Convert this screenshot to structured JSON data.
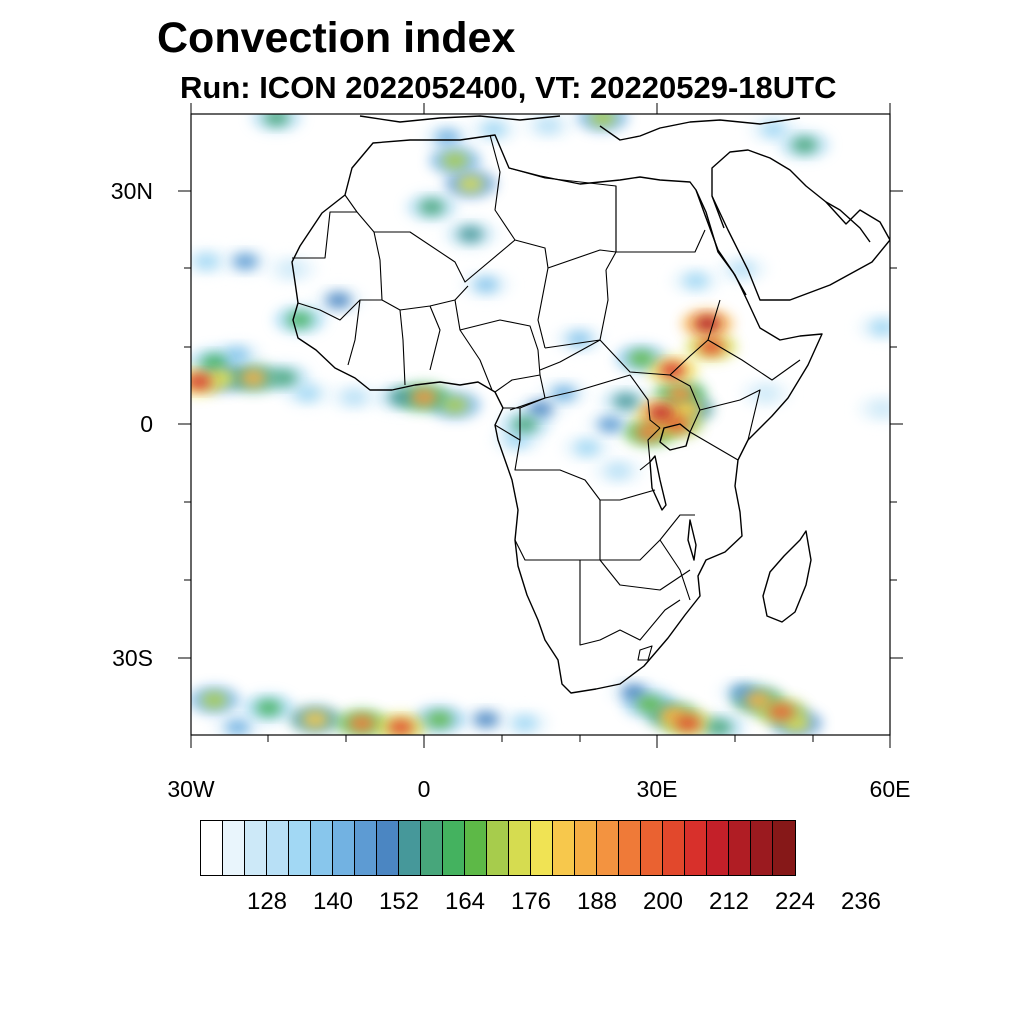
{
  "title": "Convection index",
  "subtitle": "Run: ICON 2022052400,  VT: 20220529-18UTC",
  "axes": {
    "lat_labels": [
      "30N",
      "0",
      "30S"
    ],
    "lon_labels": [
      "30W",
      "0",
      "30E",
      "60E"
    ]
  },
  "colorbar": {
    "colors": [
      "#ffffff",
      "#e9f5fc",
      "#cde9f8",
      "#b8e0f6",
      "#a2d8f4",
      "#88c6ec",
      "#72b2e2",
      "#5d9bd3",
      "#4b86c2",
      "#46989a",
      "#47a67b",
      "#44b25f",
      "#5db947",
      "#a7cc4c",
      "#d6dc50",
      "#f0e354",
      "#f7c84c",
      "#f5ae44",
      "#f39340",
      "#ef7a38",
      "#ea6231",
      "#e2482c",
      "#d8302b",
      "#c42029",
      "#b01d24",
      "#9b1a1f",
      "#861818"
    ],
    "tick_labels": [
      "128",
      "140",
      "152",
      "164",
      "176",
      "188",
      "200",
      "212",
      "224",
      "236"
    ]
  },
  "chart_data": {
    "type": "filled-contour-map",
    "title": "Convection index",
    "subtitle": "Run: ICON 2022052400,  VT: 20220529-18UTC",
    "variable": "Convection index",
    "model": "ICON",
    "run": "2022052400",
    "valid_time": "20220529-18UTC",
    "lon_range": [
      -30,
      60
    ],
    "lat_range": [
      -40,
      40
    ],
    "levels": [
      128,
      132,
      136,
      140,
      144,
      148,
      152,
      156,
      160,
      164,
      168,
      172,
      176,
      180,
      184,
      188,
      192,
      196,
      200,
      204,
      208,
      212,
      216,
      220,
      224,
      228,
      232,
      236
    ],
    "cells": [
      {
        "lon": -29,
        "lat": 5.5,
        "value": 212
      },
      {
        "lon": -26,
        "lat": 6,
        "value": 180
      },
      {
        "lon": -22,
        "lat": 6,
        "value": 192
      },
      {
        "lon": -18,
        "lat": 6,
        "value": 164
      },
      {
        "lon": -24,
        "lat": 9,
        "value": 144
      },
      {
        "lon": -27,
        "lat": 8,
        "value": 168
      },
      {
        "lon": -15,
        "lat": 4,
        "value": 140
      },
      {
        "lon": -9,
        "lat": 3.5,
        "value": 136
      },
      {
        "lon": 0,
        "lat": 3.5,
        "value": 196
      },
      {
        "lon": 4,
        "lat": 2.5,
        "value": 176
      },
      {
        "lon": -3,
        "lat": 3.5,
        "value": 160
      },
      {
        "lon": -23,
        "lat": 21,
        "value": 152
      },
      {
        "lon": -28,
        "lat": 21,
        "value": 140
      },
      {
        "lon": -17,
        "lat": 20,
        "value": 132
      },
      {
        "lon": -16,
        "lat": 13.5,
        "value": 168
      },
      {
        "lon": -11,
        "lat": 16,
        "value": 156
      },
      {
        "lon": 4,
        "lat": 34,
        "value": 176
      },
      {
        "lon": 6,
        "lat": 31,
        "value": 180
      },
      {
        "lon": 1,
        "lat": 28,
        "value": 164
      },
      {
        "lon": 6,
        "lat": 24.5,
        "value": 160
      },
      {
        "lon": 3,
        "lat": 37,
        "value": 148
      },
      {
        "lon": 9,
        "lat": 38,
        "value": 140
      },
      {
        "lon": 8,
        "lat": 18,
        "value": 144
      },
      {
        "lon": -19,
        "lat": 39.5,
        "value": 164
      },
      {
        "lon": 23,
        "lat": 39.5,
        "value": 176
      },
      {
        "lon": 16,
        "lat": 38.5,
        "value": 136
      },
      {
        "lon": 49,
        "lat": 36,
        "value": 164
      },
      {
        "lon": 45,
        "lat": 38,
        "value": 140
      },
      {
        "lon": 35,
        "lat": 18.5,
        "value": 140
      },
      {
        "lon": 41,
        "lat": 20,
        "value": 136
      },
      {
        "lon": 36.5,
        "lat": 13,
        "value": 220
      },
      {
        "lon": 37,
        "lat": 10,
        "value": 208
      },
      {
        "lon": 32,
        "lat": 7,
        "value": 212
      },
      {
        "lon": 33,
        "lat": 4,
        "value": 196
      },
      {
        "lon": 30.5,
        "lat": 1.5,
        "value": 216
      },
      {
        "lon": 32.5,
        "lat": 0,
        "value": 204
      },
      {
        "lon": 29,
        "lat": -1,
        "value": 200
      },
      {
        "lon": 34,
        "lat": 2,
        "value": 188
      },
      {
        "lon": 28,
        "lat": 8.5,
        "value": 172
      },
      {
        "lon": 26,
        "lat": 3,
        "value": 160
      },
      {
        "lon": 24,
        "lat": 0,
        "value": 152
      },
      {
        "lon": 21,
        "lat": -3,
        "value": 140
      },
      {
        "lon": 18,
        "lat": 4,
        "value": 148
      },
      {
        "lon": 15,
        "lat": 2,
        "value": 156
      },
      {
        "lon": 13,
        "lat": 0,
        "value": 164
      },
      {
        "lon": 12,
        "lat": -2,
        "value": 140
      },
      {
        "lon": 20,
        "lat": 11,
        "value": 144
      },
      {
        "lon": 25,
        "lat": -6,
        "value": 136
      },
      {
        "lon": 44,
        "lat": 4,
        "value": 132
      },
      {
        "lon": 59,
        "lat": 2,
        "value": 132
      },
      {
        "lon": 59,
        "lat": 12.5,
        "value": 140
      },
      {
        "lon": -27,
        "lat": -35.5,
        "value": 176
      },
      {
        "lon": -20,
        "lat": -36.5,
        "value": 168
      },
      {
        "lon": -14,
        "lat": -38,
        "value": 188
      },
      {
        "lon": -8,
        "lat": -38.5,
        "value": 200
      },
      {
        "lon": -3,
        "lat": -39,
        "value": 208
      },
      {
        "lon": 2,
        "lat": -38,
        "value": 172
      },
      {
        "lon": 8,
        "lat": -38,
        "value": 156
      },
      {
        "lon": 13,
        "lat": -38.5,
        "value": 140
      },
      {
        "lon": -24,
        "lat": -39,
        "value": 148
      },
      {
        "lon": 27,
        "lat": -34.5,
        "value": 156
      },
      {
        "lon": 29,
        "lat": -36,
        "value": 172
      },
      {
        "lon": 32,
        "lat": -37.5,
        "value": 192
      },
      {
        "lon": 34,
        "lat": -38.5,
        "value": 208
      },
      {
        "lon": 38,
        "lat": -39,
        "value": 164
      },
      {
        "lon": 43,
        "lat": -35.5,
        "value": 192
      },
      {
        "lon": 46,
        "lat": -37,
        "value": 204
      },
      {
        "lon": 48,
        "lat": -38.5,
        "value": 180
      },
      {
        "lon": 41,
        "lat": -34.5,
        "value": 152
      }
    ]
  }
}
